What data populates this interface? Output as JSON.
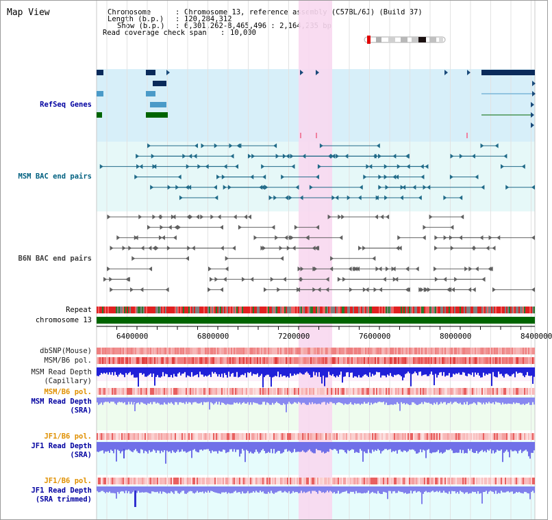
{
  "app": {
    "title": "Map View"
  },
  "header": {
    "chromosome_label": "Chromosome",
    "chromosome_value": "Chromosome 13, reference assembly (C57BL/6J) (Build 37)",
    "length_label": "Length (b.p.)",
    "length_value": "120,284,312",
    "show_label": "Show (b.p.)",
    "show_value": "6,301,262-8,465,496 : 2,164,235 bp",
    "coverage_label": "Read coverage check span",
    "coverage_value": "10,000"
  },
  "tracks": {
    "refseq": "RefSeq Genes",
    "msm_bac": "MSM BAC end pairs",
    "b6n_bac": "B6N BAC end pairs",
    "repeat": "Repeat",
    "chromosome": "chromosome 13",
    "dbsnp": "dbSNP(Mouse)",
    "msm_b6_pol": "MSM/B6 pol.",
    "msm_read_depth_cap_1": "MSM Read Depth",
    "msm_read_depth_cap_2": "(Capillary)",
    "msm_b6_pol_sra": "MSM/B6 pol.",
    "msm_read_depth_sra_1": "MSM Read Depth",
    "msm_read_depth_sra_2": "(SRA)",
    "jf1_b6_pol": "JF1/B6 pol.",
    "jf1_read_depth_1": "JF1 Read Depth",
    "jf1_read_depth_2": "(SRA)",
    "jf1_b6_pol_trim": "JF1/B6 pol.",
    "jf1_read_depth_trim_1": "JF1 Read Depth",
    "jf1_read_depth_trim_2": "(SRA trimmed)"
  },
  "axis": {
    "ticks": [
      "6400000",
      "6800000",
      "7200000",
      "7600000",
      "8000000",
      "8400000"
    ]
  },
  "colors": {
    "refseq_bg": "#d7eff9",
    "msm_bg": "#e6f8f8",
    "highlight": "#f8d8f0",
    "chromosome": "#006400",
    "label_refseq": "#0000a0",
    "label_msm": "#006080",
    "label_orange": "#e09000",
    "label_blue": "#0000a0"
  }
}
